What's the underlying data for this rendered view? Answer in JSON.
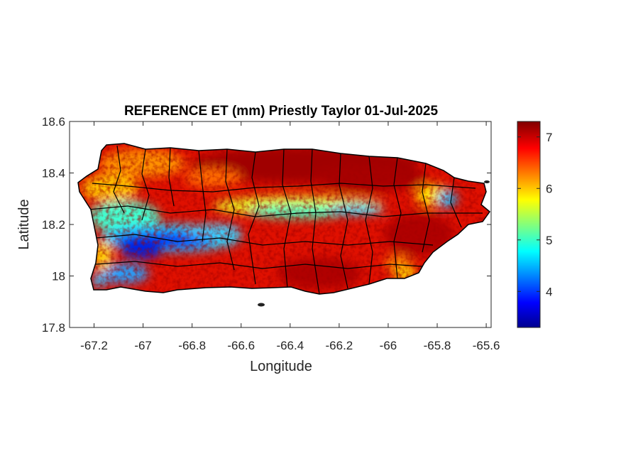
{
  "map": {
    "title": "REFERENCE ET (mm) Priestly Taylor 01-Jul-2025",
    "xlabel": "Longitude",
    "ylabel": "Latitude",
    "xlim": [
      -67.3,
      -65.58
    ],
    "ylim": [
      17.8,
      18.6
    ],
    "xticks": [
      -67.2,
      -67,
      -66.8,
      -66.6,
      -66.4,
      -66.2,
      -66,
      -65.8,
      -65.6
    ],
    "yticks": [
      17.8,
      18,
      18.2,
      18.4,
      18.6
    ],
    "colorbar": {
      "range": [
        3.3,
        7.3
      ],
      "ticks": [
        4,
        5,
        6,
        7
      ],
      "colormap": "jet",
      "colors": [
        "#00008f",
        "#0000ff",
        "#00ffff",
        "#ffff00",
        "#ff0000",
        "#800000"
      ]
    }
  }
}
